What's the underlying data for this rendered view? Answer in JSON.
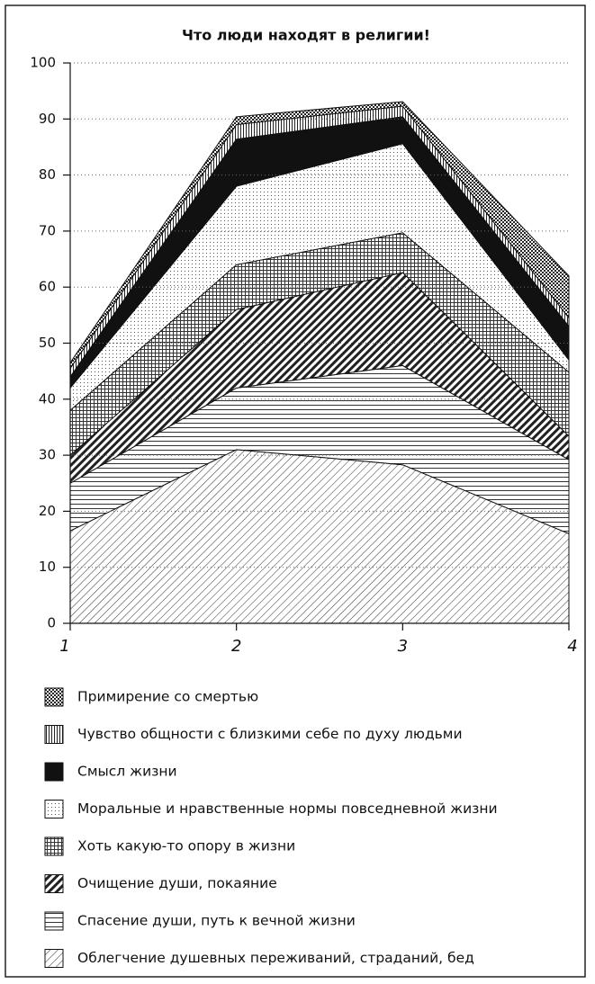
{
  "chart_data": {
    "type": "stacked-area",
    "title": "Что люди находят в религии!",
    "categories": [
      "1",
      "2",
      "3",
      "4"
    ],
    "ylim": [
      0,
      100
    ],
    "yticks": [
      0,
      10,
      20,
      30,
      40,
      50,
      60,
      70,
      80,
      90,
      100
    ],
    "grid": true,
    "series": [
      {
        "name": "Облегчение душевных переживаний, страданий, бед",
        "pattern": "diagonal",
        "values": [
          16.5,
          31,
          28.3,
          16
        ]
      },
      {
        "name": "Спасение души, путь к вечной жизни",
        "pattern": "horizontal",
        "values": [
          8.5,
          11,
          17.7,
          13.2
        ]
      },
      {
        "name": "Очищение души, покаяние",
        "pattern": "thick-diagonal",
        "values": [
          5,
          14,
          16.6,
          4.2
        ]
      },
      {
        "name": "Хоть какую-то опору в жизни",
        "pattern": "grid",
        "values": [
          8,
          8,
          7.1,
          11.4
        ]
      },
      {
        "name": "Моральные и нравственные нормы повседневной жизни",
        "pattern": "dots",
        "values": [
          4,
          14,
          15.9,
          2.2
        ]
      },
      {
        "name": "Смысл жизни",
        "pattern": "solid",
        "values": [
          2,
          8.4,
          4.8,
          6
        ]
      },
      {
        "name": "Чувство общности с близкими себе по духу людьми",
        "pattern": "vertical",
        "values": [
          1.5,
          2.6,
          1.9,
          1.5
        ]
      },
      {
        "name": "Примирение со смертью",
        "pattern": "checker",
        "values": [
          1,
          1.4,
          0.8,
          7.5
        ]
      }
    ]
  }
}
